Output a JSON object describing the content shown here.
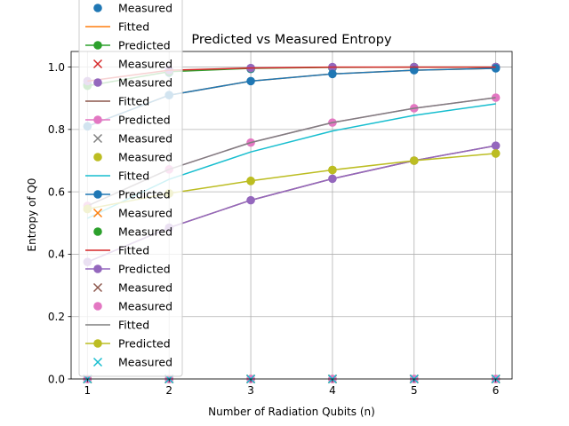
{
  "chart_data": {
    "type": "line",
    "title": "Predicted vs Measured Entropy",
    "xlabel": "Number of Radiation Qubits (n)",
    "ylabel": "Entropy of Q0",
    "xlim": [
      0.8,
      6.2
    ],
    "ylim": [
      0.0,
      1.05
    ],
    "xticks": [
      1,
      2,
      3,
      4,
      5,
      6
    ],
    "xtick_labels": [
      "1",
      "2",
      "3",
      "4",
      "5",
      "6"
    ],
    "yticks": [
      0.0,
      0.2,
      0.4,
      0.6,
      0.8,
      1.0
    ],
    "ytick_labels": [
      "0.0",
      "0.2",
      "0.4",
      "0.6",
      "0.8",
      "1.0"
    ],
    "grid": true,
    "legend_position": "top-left",
    "x": [
      1,
      2,
      3,
      4,
      5,
      6
    ],
    "series": [
      {
        "name": "Measured",
        "color": "#1f77b4",
        "style": "point",
        "marker": "o",
        "values": [
          0.945,
          0.982,
          0.994,
          0.997,
          0.999,
          1.0
        ]
      },
      {
        "name": "Fitted",
        "color": "#ff7f0e",
        "style": "line",
        "marker": "",
        "values": [
          0.81,
          0.91,
          0.955,
          0.978,
          0.99,
          0.996
        ]
      },
      {
        "name": "Predicted",
        "color": "#2ca02c",
        "style": "line",
        "marker": "o",
        "values": [
          0.94,
          0.985,
          0.996,
          0.999,
          1.0,
          1.0
        ]
      },
      {
        "name": "Measured",
        "color": "#d62728",
        "style": "point",
        "marker": "x",
        "values": [
          0.0,
          0.0,
          0.0,
          0.0,
          0.0,
          0.0
        ]
      },
      {
        "name": "Measured",
        "color": "#9467bd",
        "style": "point",
        "marker": "o",
        "values": [
          0.955,
          0.99,
          0.997,
          1.0,
          1.0,
          1.0
        ]
      },
      {
        "name": "Fitted",
        "color": "#8c564b",
        "style": "line",
        "marker": "",
        "values": [
          0.375,
          0.485,
          0.573,
          0.642,
          0.7,
          0.748
        ]
      },
      {
        "name": "Predicted",
        "color": "#e377c2",
        "style": "line",
        "marker": "o",
        "values": [
          0.555,
          0.672,
          0.758,
          0.822,
          0.868,
          0.902
        ]
      },
      {
        "name": "Measured",
        "color": "#7f7f7f",
        "style": "point",
        "marker": "x",
        "values": [
          0.0,
          0.0,
          0.0,
          0.0,
          0.0,
          0.0
        ]
      },
      {
        "name": "Measured",
        "color": "#bcbd22",
        "style": "point",
        "marker": "o",
        "values": [
          0.545,
          0.595,
          0.635,
          0.67,
          0.7,
          0.723
        ]
      },
      {
        "name": "Fitted",
        "color": "#17becf",
        "style": "line",
        "marker": "",
        "values": [
          0.515,
          0.64,
          0.728,
          0.795,
          0.845,
          0.882
        ]
      },
      {
        "name": "Predicted",
        "color": "#1f77b4",
        "style": "line",
        "marker": "o",
        "values": [
          0.81,
          0.91,
          0.955,
          0.978,
          0.99,
          0.996
        ]
      },
      {
        "name": "Measured",
        "color": "#ff7f0e",
        "style": "point",
        "marker": "x",
        "values": [
          0.0,
          0.0,
          0.0,
          0.0,
          0.0,
          0.0
        ]
      },
      {
        "name": "Measured",
        "color": "#2ca02c",
        "style": "point",
        "marker": "o",
        "values": [
          0.0,
          0.0,
          0.0,
          0.0,
          0.0,
          0.0
        ]
      },
      {
        "name": "Fitted",
        "color": "#d62728",
        "style": "line",
        "marker": "",
        "values": [
          0.955,
          0.99,
          0.997,
          1.0,
          1.0,
          1.0
        ]
      },
      {
        "name": "Predicted",
        "color": "#9467bd",
        "style": "line",
        "marker": "o",
        "values": [
          0.375,
          0.485,
          0.573,
          0.642,
          0.7,
          0.748
        ]
      },
      {
        "name": "Measured",
        "color": "#8c564b",
        "style": "point",
        "marker": "x",
        "values": [
          0.0,
          0.0,
          0.0,
          0.0,
          0.0,
          0.0
        ]
      },
      {
        "name": "Measured",
        "color": "#e377c2",
        "style": "point",
        "marker": "o",
        "values": [
          0.0,
          0.0,
          0.0,
          0.0,
          0.0,
          0.0
        ]
      },
      {
        "name": "Fitted",
        "color": "#7f7f7f",
        "style": "line",
        "marker": "",
        "values": [
          0.555,
          0.672,
          0.758,
          0.822,
          0.868,
          0.902
        ]
      },
      {
        "name": "Predicted",
        "color": "#bcbd22",
        "style": "line",
        "marker": "o",
        "values": [
          0.545,
          0.595,
          0.635,
          0.67,
          0.7,
          0.723
        ]
      },
      {
        "name": "Measured",
        "color": "#17becf",
        "style": "point",
        "marker": "x",
        "values": [
          0.0,
          0.0,
          0.0,
          0.0,
          0.0,
          0.0
        ]
      }
    ]
  }
}
